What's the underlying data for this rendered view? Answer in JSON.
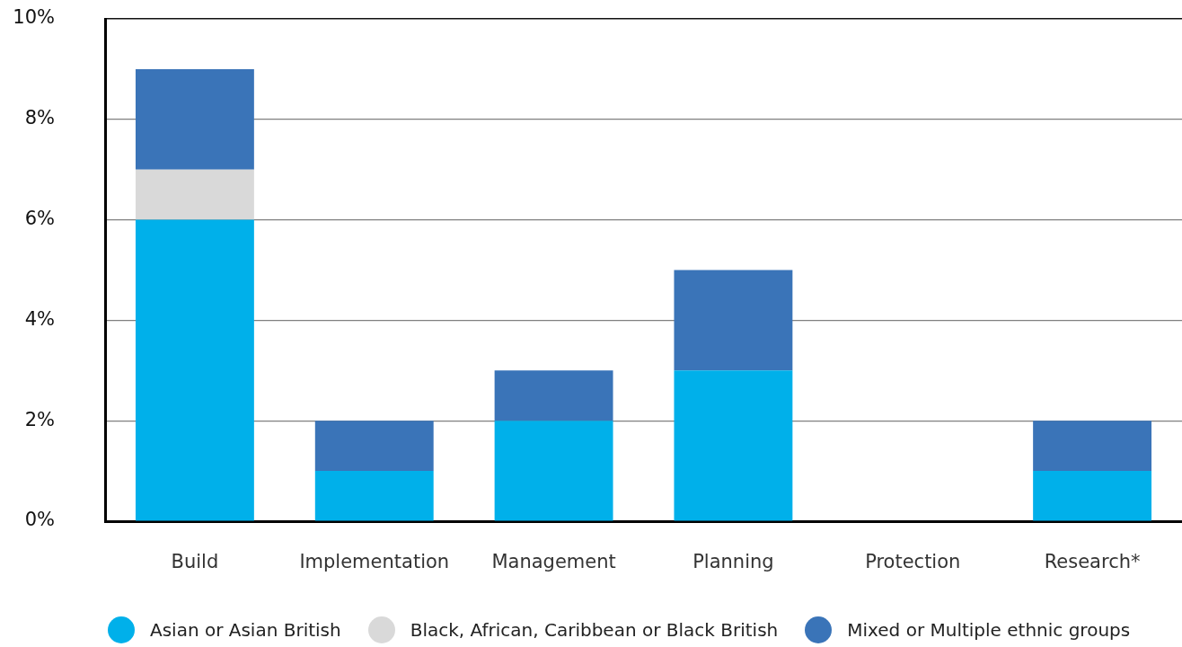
{
  "chart_data": {
    "type": "bar",
    "stacked": true,
    "categories": [
      "Build",
      "Implementation",
      "Management",
      "Planning",
      "Protection",
      "Research*"
    ],
    "series": [
      {
        "name": "Asian or Asian British",
        "color": "#00b0ea",
        "values": [
          6,
          1,
          2,
          3,
          0,
          1
        ]
      },
      {
        "name": "Black, African, Caribbean or Black British",
        "color": "#d9d9d9",
        "values": [
          1,
          0,
          0,
          0,
          0,
          0
        ]
      },
      {
        "name": "Mixed or Multiple ethnic groups",
        "color": "#3a74b8",
        "values": [
          2,
          1,
          1,
          2,
          0,
          1
        ]
      }
    ],
    "ylim": [
      0,
      10
    ],
    "yticks": [
      {
        "value": 0,
        "label": "0%"
      },
      {
        "value": 2,
        "label": "2%"
      },
      {
        "value": 4,
        "label": "4%"
      },
      {
        "value": 6,
        "label": "6%"
      },
      {
        "value": 8,
        "label": "8%"
      },
      {
        "value": 10,
        "label": "10%"
      }
    ],
    "grid": "y",
    "legend": "bottom"
  }
}
